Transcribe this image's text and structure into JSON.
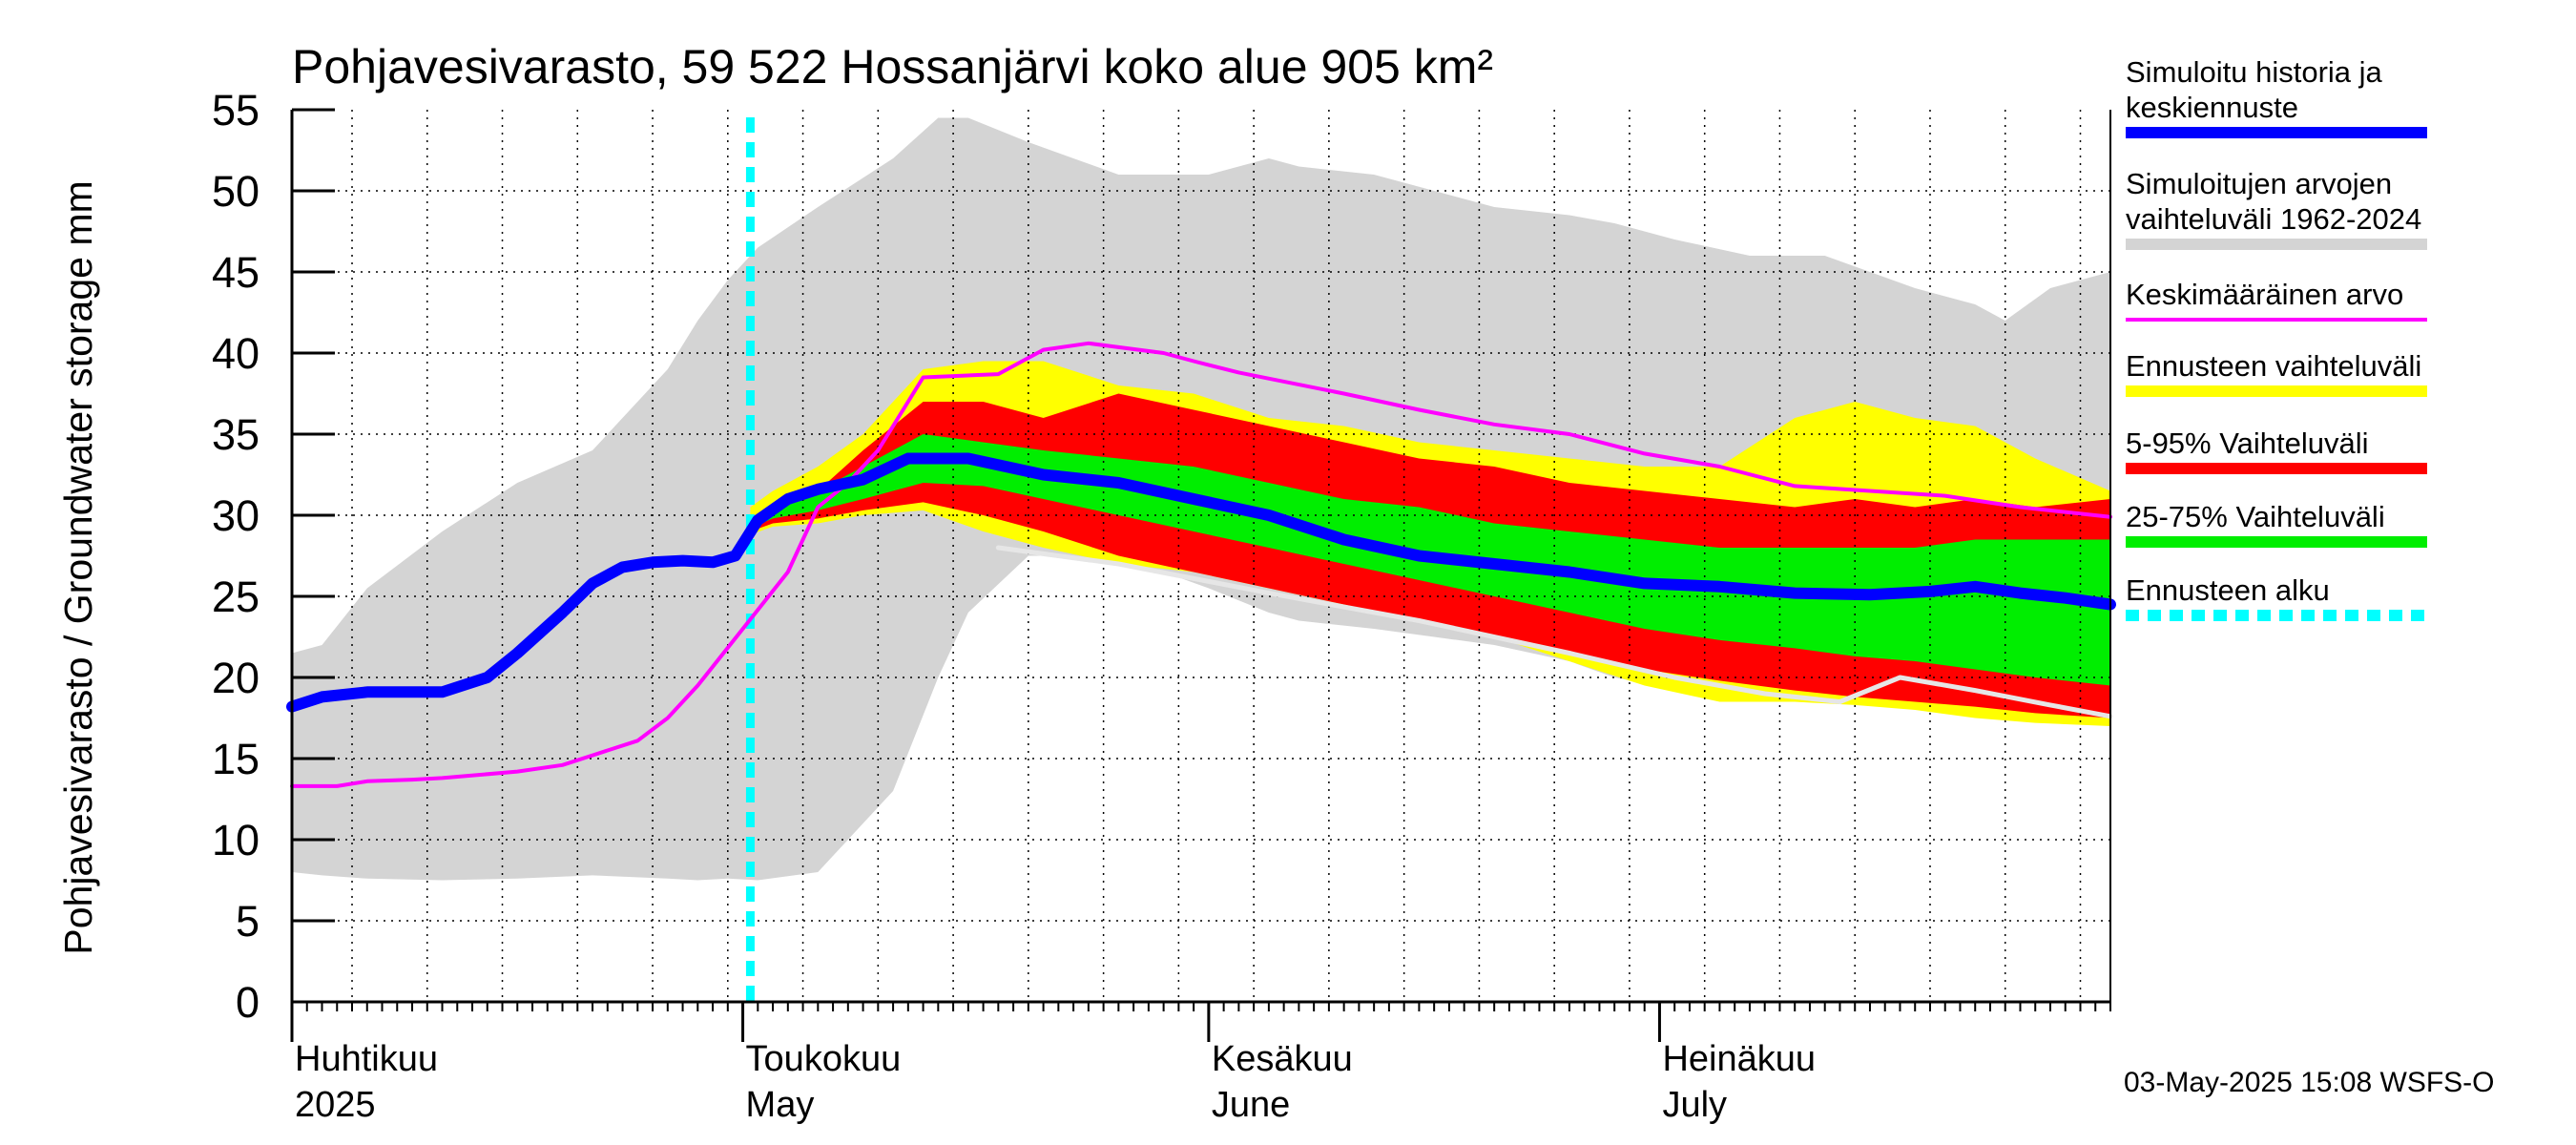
{
  "chart_data": {
    "type": "area",
    "title": "Pohjavesivarasto, 59 522 Hossanjärvi koko alue 905 km²",
    "ylabel": "Pohjavesivarasto / Groundwater storage   mm",
    "ylim": [
      0,
      55
    ],
    "yticks": [
      0,
      5,
      10,
      15,
      20,
      25,
      30,
      35,
      40,
      45,
      50,
      55
    ],
    "xlim": [
      0,
      121
    ],
    "x_unit": "days since 2025-04-01",
    "month_labels": [
      {
        "day": 0,
        "fi": "Huhtikuu",
        "en": "2025"
      },
      {
        "day": 30,
        "fi": "Toukokuu",
        "en": "May"
      },
      {
        "day": 61,
        "fi": "Kesäkuu",
        "en": "June"
      },
      {
        "day": 91,
        "fi": "Heinäkuu",
        "en": "July"
      }
    ],
    "forecast_start_day": 30.5,
    "series": [
      {
        "name": "Simuloitujen arvojen vaihteluväli 1962-2024",
        "kind": "band",
        "color": "#d4d4d4",
        "x": [
          0,
          2,
          5,
          10,
          15,
          20,
          25,
          27,
          29,
          31,
          35,
          40,
          43,
          45,
          49,
          52,
          55,
          58,
          61,
          65,
          67,
          72,
          76,
          80,
          85,
          88,
          92,
          97,
          102,
          105,
          108,
          112,
          114,
          117,
          119,
          121
        ],
        "upper": [
          21.5,
          22,
          25.5,
          29,
          32,
          34,
          39,
          42,
          44.5,
          46.5,
          49,
          52,
          54.5,
          54.5,
          53,
          52,
          51,
          51,
          51,
          52,
          51.5,
          51,
          50,
          49,
          48.5,
          48,
          47,
          46,
          46,
          45,
          44,
          43,
          42,
          44,
          44.5,
          45
        ],
        "lower": [
          8,
          7.8,
          7.6,
          7.5,
          7.6,
          7.8,
          7.6,
          7.5,
          7.6,
          7.5,
          8,
          13,
          20,
          24,
          27.5,
          27.5,
          27,
          26.5,
          25.5,
          24,
          23.5,
          23,
          22.5,
          22,
          21,
          20,
          19.3,
          18.8,
          18.5,
          19,
          20.3,
          19.3,
          19,
          18.5,
          18,
          17.6
        ]
      },
      {
        "name": "Ennusteen vaihteluväli",
        "kind": "band",
        "color": "#ffff00",
        "x": [
          30.5,
          32,
          35,
          38,
          42,
          46,
          50,
          55,
          60,
          65,
          70,
          75,
          80,
          85,
          90,
          95,
          100,
          104,
          108,
          112,
          116,
          121
        ],
        "upper": [
          30.5,
          31.5,
          33,
          35,
          39,
          39.5,
          39.5,
          38,
          37.5,
          36,
          35.5,
          34.5,
          34,
          33.5,
          33,
          33,
          36,
          37,
          36,
          35.5,
          33.5,
          31.5
        ],
        "lower": [
          28.8,
          29.3,
          29.5,
          30,
          30.3,
          29,
          28,
          27,
          26.5,
          25.5,
          24.5,
          23.5,
          22.5,
          21,
          19.5,
          18.5,
          18.5,
          18.3,
          18,
          17.5,
          17.2,
          17
        ]
      },
      {
        "name": "5-95% Vaihteluväli",
        "kind": "band",
        "color": "#ff0000",
        "x": [
          30.5,
          32,
          35,
          38,
          42,
          46,
          50,
          55,
          60,
          65,
          70,
          75,
          80,
          85,
          90,
          95,
          100,
          104,
          108,
          112,
          116,
          121
        ],
        "upper": [
          29.8,
          30.5,
          31.5,
          34,
          37,
          37,
          36,
          37.5,
          36.5,
          35.5,
          34.5,
          33.5,
          33,
          32,
          31.5,
          31,
          30.5,
          31,
          30.5,
          31,
          30.5,
          31
        ],
        "lower": [
          29,
          29.5,
          29.8,
          30.3,
          30.8,
          30,
          29,
          27.5,
          26.5,
          25.5,
          24.5,
          23.5,
          22.5,
          21.5,
          20.5,
          19.8,
          19.2,
          18.8,
          18.5,
          18.2,
          17.8,
          17.5
        ]
      },
      {
        "name": "25-75% Vaihteluväli",
        "kind": "band",
        "color": "#00ee00",
        "x": [
          30.5,
          32,
          35,
          38,
          42,
          46,
          50,
          55,
          60,
          65,
          70,
          75,
          80,
          85,
          90,
          95,
          100,
          104,
          108,
          112,
          116,
          121
        ],
        "upper": [
          29.8,
          30.5,
          31.5,
          33,
          35,
          34.5,
          34,
          33.5,
          33,
          32,
          31,
          30.5,
          29.5,
          29,
          28.5,
          28,
          28,
          28,
          28,
          28.5,
          28.5,
          28.5
        ],
        "lower": [
          29.2,
          29.8,
          30.3,
          31,
          32,
          31.8,
          31,
          30,
          29,
          28,
          27,
          26,
          25,
          24,
          23,
          22.3,
          21.8,
          21.3,
          21,
          20.5,
          20,
          19.5
        ]
      },
      {
        "name": "Keskimääräinen arvo",
        "kind": "line",
        "color": "#ff00ff",
        "width": 4,
        "x": [
          0,
          3,
          5,
          8,
          10,
          15,
          18,
          20,
          23,
          25,
          27,
          30,
          33,
          35,
          37,
          39,
          42,
          47,
          50,
          53,
          58,
          60,
          63,
          70,
          75,
          80,
          85,
          90,
          95,
          100,
          105,
          110,
          115,
          121
        ],
        "y": [
          13.3,
          13.3,
          13.6,
          13.7,
          13.8,
          14.2,
          14.6,
          15.2,
          16.1,
          17.5,
          19.5,
          23,
          26.5,
          30.5,
          32,
          34,
          38.5,
          38.7,
          40.2,
          40.6,
          40,
          39.5,
          38.8,
          37.5,
          36.5,
          35.6,
          35,
          33.8,
          33,
          31.8,
          31.5,
          31.2,
          30.5,
          29.9
        ]
      },
      {
        "name": "Simuloitu historia ja keskiennuste",
        "kind": "line",
        "color": "#0000ff",
        "width": 12,
        "x": [
          0,
          2,
          5,
          8,
          10,
          13,
          15,
          18,
          20,
          22,
          24,
          26,
          28,
          29.5,
          31,
          33,
          35,
          38,
          41,
          45,
          50,
          55,
          60,
          65,
          70,
          75,
          80,
          85,
          90,
          95,
          100,
          105,
          109,
          112,
          115,
          118,
          121
        ],
        "y": [
          18.2,
          18.8,
          19.1,
          19.1,
          19.1,
          20,
          21.5,
          24,
          25.8,
          26.8,
          27.1,
          27.2,
          27.1,
          27.5,
          29.7,
          31,
          31.6,
          32.2,
          33.5,
          33.5,
          32.5,
          32,
          31,
          30,
          28.5,
          27.5,
          27,
          26.5,
          25.8,
          25.6,
          25.2,
          25.1,
          25.3,
          25.6,
          25.2,
          24.9,
          24.5
        ]
      },
      {
        "name": "Simuloitu historia (vaalea)",
        "kind": "line",
        "color": "#e6e6e6",
        "width": 5,
        "x": [
          47,
          55,
          65,
          75,
          85,
          92,
          98,
          103,
          107,
          112,
          117,
          121
        ],
        "y": [
          28,
          27,
          25.2,
          23.5,
          21.5,
          20,
          19,
          18.5,
          20,
          19.2,
          18.3,
          17.6
        ]
      }
    ]
  },
  "legend": {
    "items": [
      {
        "label_lines": [
          "Simuloitu historia ja",
          "keskiennuste"
        ],
        "color": "#0000ff",
        "style": "thick"
      },
      {
        "label_lines": [
          "Simuloitujen arvojen",
          "vaihteluväli 1962-2024"
        ],
        "color": "#d4d4d4",
        "style": "thick"
      },
      {
        "label_lines": [
          "Keskimääräinen arvo"
        ],
        "color": "#ff00ff",
        "style": "thin"
      },
      {
        "label_lines": [
          "Ennusteen vaihteluväli"
        ],
        "color": "#ffff00",
        "style": "thick"
      },
      {
        "label_lines": [
          "5-95% Vaihteluväli"
        ],
        "color": "#ff0000",
        "style": "thick"
      },
      {
        "label_lines": [
          "25-75% Vaihteluväli"
        ],
        "color": "#00ee00",
        "style": "thick"
      },
      {
        "label_lines": [
          "Ennusteen alku"
        ],
        "color": "#00ffff",
        "style": "dashed"
      }
    ]
  },
  "footer": {
    "timestamp": "03-May-2025 15:08 WSFS-O"
  }
}
